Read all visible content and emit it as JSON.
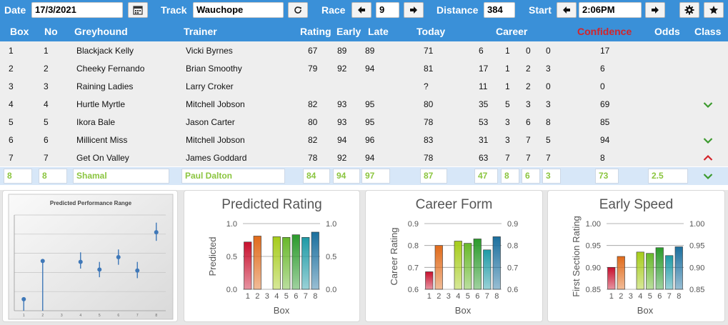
{
  "toolbar": {
    "date_label": "Date",
    "date_value": "17/3/2021",
    "track_label": "Track",
    "track_value": "Wauchope",
    "race_label": "Race",
    "race_value": "9",
    "distance_label": "Distance",
    "distance_value": "384",
    "start_label": "Start",
    "start_value": "2:06PM",
    "icons": [
      "calendar-icon",
      "refresh-icon",
      "arrow-left-icon",
      "arrow-right-icon",
      "gear-icon",
      "star-icon"
    ]
  },
  "table": {
    "headers": {
      "box": "Box",
      "no": "No",
      "greyhound": "Greyhound",
      "trainer": "Trainer",
      "rating": "Rating",
      "early": "Early",
      "late": "Late",
      "today": "Today",
      "career": "Career",
      "confidence": "Confidence",
      "odds": "Odds",
      "class": "Class"
    },
    "rows": [
      {
        "box": "1",
        "no": "1",
        "greyhound": "Blackjack Kelly",
        "trainer": "Vicki Byrnes",
        "rating": "67",
        "early": "89",
        "late": "89",
        "today": "71",
        "c_starts": "6",
        "c_w": "1",
        "c_p": "0",
        "c_s": "0",
        "confidence": "17",
        "odds": "",
        "class": ""
      },
      {
        "box": "2",
        "no": "2",
        "greyhound": "Cheeky Fernando",
        "trainer": "Brian Smoothy",
        "rating": "79",
        "early": "92",
        "late": "94",
        "today": "81",
        "c_starts": "17",
        "c_w": "1",
        "c_p": "2",
        "c_s": "3",
        "confidence": "6",
        "odds": "",
        "class": ""
      },
      {
        "box": "3",
        "no": "3",
        "greyhound": "Raining Ladies",
        "trainer": "Larry Croker",
        "rating": "",
        "early": "",
        "late": "",
        "today": "?",
        "c_starts": "11",
        "c_w": "1",
        "c_p": "2",
        "c_s": "0",
        "confidence": "0",
        "odds": "",
        "class": ""
      },
      {
        "box": "4",
        "no": "4",
        "greyhound": "Hurtle Myrtle",
        "trainer": "Mitchell Jobson",
        "rating": "82",
        "early": "93",
        "late": "95",
        "today": "80",
        "c_starts": "35",
        "c_w": "5",
        "c_p": "3",
        "c_s": "3",
        "confidence": "69",
        "odds": "",
        "class": "up"
      },
      {
        "box": "5",
        "no": "5",
        "greyhound": "Ikora Bale",
        "trainer": "Jason Carter",
        "rating": "80",
        "early": "93",
        "late": "95",
        "today": "78",
        "c_starts": "53",
        "c_w": "3",
        "c_p": "6",
        "c_s": "8",
        "confidence": "85",
        "odds": "",
        "class": ""
      },
      {
        "box": "6",
        "no": "6",
        "greyhound": "Millicent Miss",
        "trainer": "Mitchell Jobson",
        "rating": "82",
        "early": "94",
        "late": "96",
        "today": "83",
        "c_starts": "31",
        "c_w": "3",
        "c_p": "7",
        "c_s": "5",
        "confidence": "94",
        "odds": "",
        "class": "up"
      },
      {
        "box": "7",
        "no": "7",
        "greyhound": "Get On Valley",
        "trainer": "James Goddard",
        "rating": "78",
        "early": "92",
        "late": "94",
        "today": "78",
        "c_starts": "63",
        "c_w": "7",
        "c_p": "7",
        "c_s": "7",
        "confidence": "8",
        "odds": "",
        "class": "down"
      }
    ],
    "edit_row": {
      "box": "8",
      "no": "8",
      "greyhound": "Shamal",
      "trainer": "Paul Dalton",
      "rating": "84",
      "early": "94",
      "late": "97",
      "today": "87",
      "c_starts": "47",
      "c_w": "8",
      "c_p": "6",
      "c_s": "3",
      "confidence": "73",
      "odds": "2.5",
      "class": "up"
    }
  },
  "chart_data": [
    {
      "type": "scatter",
      "title": "Predicted Performance Range",
      "categories": [
        "1",
        "2",
        "3",
        "4",
        "5",
        "6",
        "7",
        "8"
      ],
      "values": [
        0.12,
        0.52,
        null,
        0.51,
        0.43,
        0.56,
        0.42,
        0.82
      ],
      "low": [
        0.12,
        0.52,
        null,
        0.44,
        0.35,
        0.48,
        0.34,
        0.73
      ],
      "high": [
        0.12,
        0.52,
        null,
        0.61,
        0.51,
        0.64,
        0.51,
        0.92
      ],
      "ylim": [
        0,
        1
      ],
      "grid": true
    },
    {
      "type": "bar",
      "title": "Predicted Rating",
      "categories": [
        "1",
        "2",
        "3",
        "4",
        "5",
        "6",
        "7",
        "8"
      ],
      "values": [
        0.72,
        0.81,
        null,
        0.8,
        0.79,
        0.83,
        0.79,
        0.87
      ],
      "xlabel": "Box",
      "ylabel": "Predicted",
      "ylim": [
        0.0,
        1.0
      ],
      "ticks": [
        "0.0",
        "0.5",
        "1.0"
      ],
      "tick_values": [
        0.0,
        0.5,
        1.0
      ]
    },
    {
      "type": "bar",
      "title": "Career Form",
      "categories": [
        "1",
        "2",
        "3",
        "4",
        "5",
        "6",
        "7",
        "8"
      ],
      "values": [
        0.68,
        0.8,
        null,
        0.82,
        0.81,
        0.83,
        0.78,
        0.84
      ],
      "xlabel": "Box",
      "ylabel": "Career Rating",
      "ylim": [
        0.6,
        0.9
      ],
      "ticks": [
        "0.6",
        "0.7",
        "0.8",
        "0.9"
      ],
      "tick_values": [
        0.6,
        0.7,
        0.8,
        0.9
      ]
    },
    {
      "type": "bar",
      "title": "Early Speed",
      "categories": [
        "1",
        "2",
        "3",
        "4",
        "5",
        "6",
        "7",
        "8"
      ],
      "values": [
        0.9,
        0.925,
        null,
        0.935,
        0.932,
        0.945,
        0.927,
        0.947
      ],
      "xlabel": "Box",
      "ylabel": "First Section Rating",
      "ylim": [
        0.85,
        1.0
      ],
      "ticks": [
        "0.85",
        "0.90",
        "0.95",
        "1.00"
      ],
      "tick_values": [
        0.85,
        0.9,
        0.95,
        1.0
      ]
    }
  ],
  "colors": {
    "header_blue": "#3a90d8",
    "confidence_red": "#d3242b",
    "edit_green": "#8bc53f",
    "check_green": "#3c9a2e",
    "caret_red": "#d3242b",
    "bars": [
      "#c8102e",
      "#e06a1a",
      "#d8c800",
      "#a6cc1a",
      "#68b82a",
      "#2b9a2b",
      "#1e9aa6",
      "#1b6f9e"
    ]
  }
}
